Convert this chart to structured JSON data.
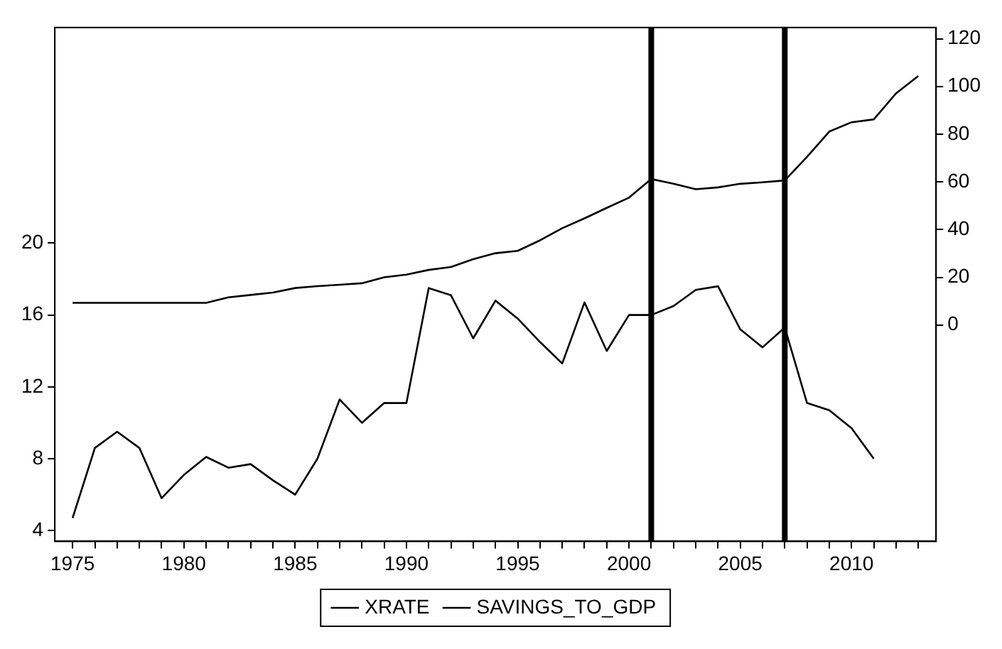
{
  "chart_data": {
    "type": "line",
    "x": [
      1975,
      1976,
      1977,
      1978,
      1979,
      1980,
      1981,
      1982,
      1983,
      1984,
      1985,
      1986,
      1987,
      1988,
      1989,
      1990,
      1991,
      1992,
      1993,
      1994,
      1995,
      1996,
      1997,
      1998,
      1999,
      2000,
      2001,
      2002,
      2003,
      2004,
      2005,
      2006,
      2007,
      2008,
      2009,
      2010,
      2011,
      2012,
      2013
    ],
    "series": [
      {
        "name": "XRATE",
        "color": "#000000",
        "axis": "y2",
        "values": [
          9.3,
          9.3,
          9.3,
          9.3,
          9.3,
          9.3,
          9.3,
          11.6,
          12.6,
          13.6,
          15.5,
          16.3,
          16.9,
          17.5,
          20.0,
          21.1,
          23.1,
          24.3,
          27.6,
          30.1,
          31.1,
          35.5,
          40.6,
          44.7,
          49.1,
          53.4,
          61.2,
          59.2,
          56.9,
          57.7,
          59.2,
          59.8,
          60.6,
          70.5,
          81.1,
          85.0,
          86.2,
          97.1,
          104.4
        ]
      },
      {
        "name": "SAVINGS_TO_GDP",
        "color": "#000000",
        "values": [
          4.7,
          8.6,
          9.5,
          8.6,
          5.8,
          7.1,
          8.1,
          7.5,
          7.7,
          6.8,
          6.0,
          8.0,
          11.3,
          10.0,
          11.1,
          11.1,
          17.5,
          17.1,
          14.7,
          16.8,
          15.8,
          14.5,
          13.3,
          16.7,
          14.0,
          16.0,
          16.0,
          16.5,
          17.4,
          17.6,
          15.2,
          14.2,
          15.3,
          11.1,
          10.7,
          9.7,
          8.0,
          null,
          null
        ]
      }
    ],
    "xlim": [
      1974.2,
      2013.8
    ],
    "xticks": [
      1975,
      {
        "value": 1976,
        "label": null
      },
      {
        "value": 1977,
        "label": null
      },
      {
        "value": 1978,
        "label": null
      },
      {
        "value": 1979,
        "label": null
      },
      1980,
      {
        "value": 1981,
        "label": null
      },
      {
        "value": 1982,
        "label": null
      },
      {
        "value": 1983,
        "label": null
      },
      {
        "value": 1984,
        "label": null
      },
      1985,
      {
        "value": 1986,
        "label": null
      },
      {
        "value": 1987,
        "label": null
      },
      {
        "value": 1988,
        "label": null
      },
      {
        "value": 1989,
        "label": null
      },
      1990,
      {
        "value": 1991,
        "label": null
      },
      {
        "value": 1992,
        "label": null
      },
      {
        "value": 1993,
        "label": null
      },
      {
        "value": 1994,
        "label": null
      },
      1995,
      {
        "value": 1996,
        "label": null
      },
      {
        "value": 1997,
        "label": null
      },
      {
        "value": 1998,
        "label": null
      },
      {
        "value": 1999,
        "label": null
      },
      2000,
      {
        "value": 2001,
        "label": null
      },
      {
        "value": 2002,
        "label": null
      },
      {
        "value": 2003,
        "label": null
      },
      {
        "value": 2004,
        "label": null
      },
      2005,
      {
        "value": 2006,
        "label": null
      },
      {
        "value": 2007,
        "label": null
      },
      {
        "value": 2008,
        "label": null
      },
      {
        "value": 2009,
        "label": null
      },
      2010,
      {
        "value": 2011,
        "label": null
      },
      {
        "value": 2012,
        "label": null
      },
      {
        "value": 2013,
        "label": null
      }
    ],
    "ylim": [
      3.4,
      32
    ],
    "yticks": [
      4,
      8,
      12,
      16,
      20
    ],
    "y2lim": [
      -90.7,
      124.7
    ],
    "y2ticks": [
      0,
      20,
      40,
      60,
      80,
      100,
      120
    ],
    "ref_lines": [
      {
        "axis": "x",
        "value": 2001,
        "color": "#000000"
      },
      {
        "axis": "x",
        "value": 2007,
        "color": "#000000"
      }
    ],
    "legend": "bottom",
    "grid": false,
    "marker": "none",
    "line_style": "solid"
  }
}
